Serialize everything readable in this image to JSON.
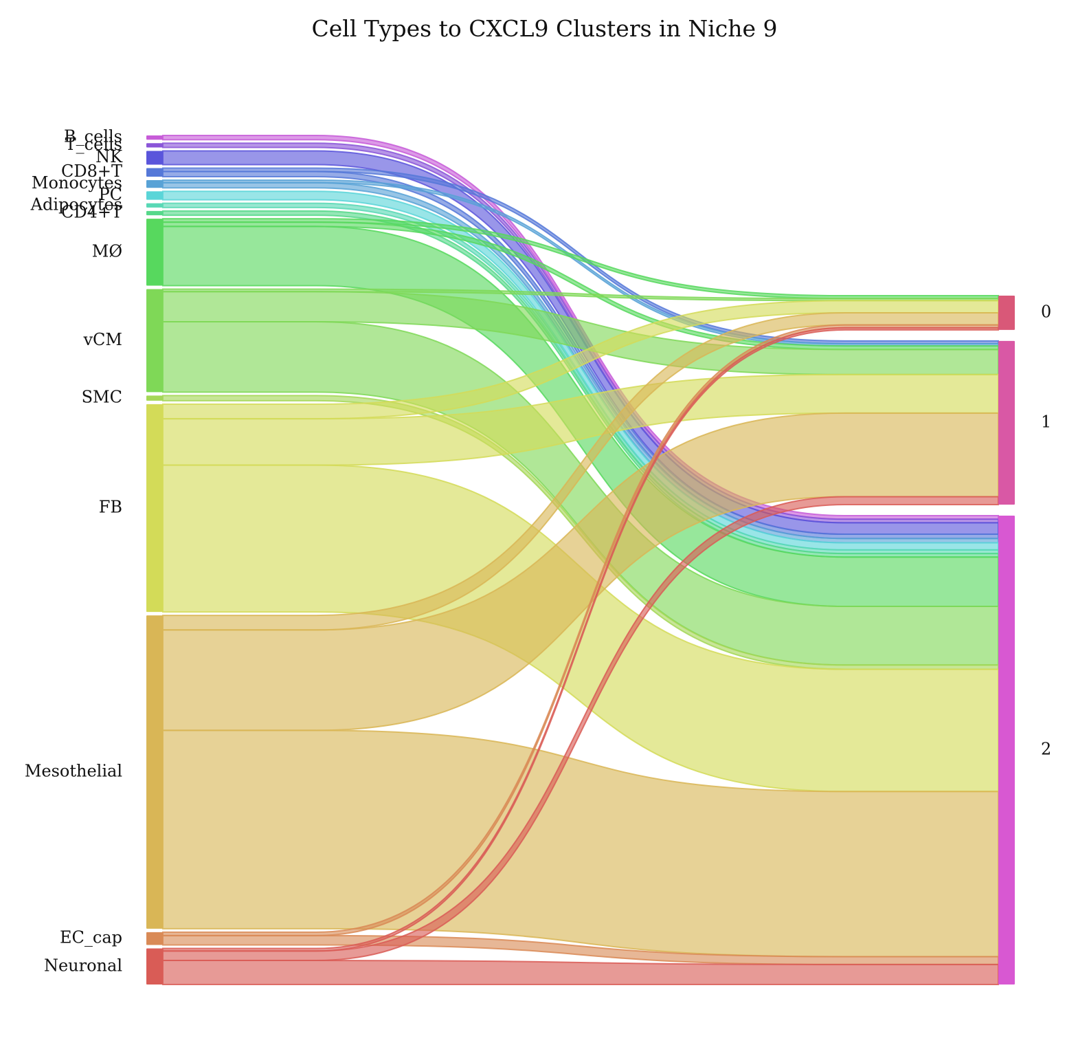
{
  "chart_data": {
    "type": "sankey",
    "title": "Cell Types to CXCL9 Clusters in Niche 9",
    "sources": [
      {
        "name": "B_cells",
        "color": "#c75cd8"
      },
      {
        "name": "T_cells",
        "color": "#8a55d8"
      },
      {
        "name": "NK",
        "color": "#5a55db"
      },
      {
        "name": "CD8+T",
        "color": "#5578d8"
      },
      {
        "name": "Monocytes",
        "color": "#58a2d6"
      },
      {
        "name": "PC",
        "color": "#5ad5d8"
      },
      {
        "name": "Adipocytes",
        "color": "#58d8b5"
      },
      {
        "name": "CD4+T",
        "color": "#56d88a"
      },
      {
        "name": "MØ",
        "color": "#57d85e"
      },
      {
        "name": "vCM",
        "color": "#7fd857"
      },
      {
        "name": "SMC",
        "color": "#a5d757"
      },
      {
        "name": "FB",
        "color": "#d3db58"
      },
      {
        "name": "Mesothelial",
        "color": "#d9b656"
      },
      {
        "name": "EC_cap",
        "color": "#d98a56"
      },
      {
        "name": "Neuronal",
        "color": "#d95c56"
      }
    ],
    "targets": [
      {
        "name": "0",
        "color": "#d95878"
      },
      {
        "name": "1",
        "color": "#d958a5"
      },
      {
        "name": "2",
        "color": "#d858d2"
      }
    ],
    "flows": [
      {
        "source": "B_cells",
        "target": "2",
        "value": 0.5
      },
      {
        "source": "T_cells",
        "target": "2",
        "value": 0.5
      },
      {
        "source": "NK",
        "target": "2",
        "value": 1.6
      },
      {
        "source": "CD8+T",
        "target": "1",
        "value": 0.4
      },
      {
        "source": "CD8+T",
        "target": "2",
        "value": 0.6
      },
      {
        "source": "Monocytes",
        "target": "1",
        "value": 0.3
      },
      {
        "source": "Monocytes",
        "target": "2",
        "value": 0.6
      },
      {
        "source": "PC",
        "target": "2",
        "value": 1.0
      },
      {
        "source": "Adipocytes",
        "target": "2",
        "value": 0.5
      },
      {
        "source": "CD4+T",
        "target": "2",
        "value": 0.5
      },
      {
        "source": "MØ",
        "target": "0",
        "value": 0.4
      },
      {
        "source": "MØ",
        "target": "1",
        "value": 0.5
      },
      {
        "source": "MØ",
        "target": "2",
        "value": 6.9
      },
      {
        "source": "vCM",
        "target": "0",
        "value": 0.3
      },
      {
        "source": "vCM",
        "target": "1",
        "value": 3.5
      },
      {
        "source": "vCM",
        "target": "2",
        "value": 8.2
      },
      {
        "source": "SMC",
        "target": "2",
        "value": 0.6
      },
      {
        "source": "FB",
        "target": "0",
        "value": 1.7
      },
      {
        "source": "FB",
        "target": "1",
        "value": 5.4
      },
      {
        "source": "FB",
        "target": "2",
        "value": 17.1
      },
      {
        "source": "Mesothelial",
        "target": "0",
        "value": 1.7
      },
      {
        "source": "Mesothelial",
        "target": "1",
        "value": 11.7
      },
      {
        "source": "Mesothelial",
        "target": "2",
        "value": 23.1
      },
      {
        "source": "EC_cap",
        "target": "0",
        "value": 0.4
      },
      {
        "source": "EC_cap",
        "target": "2",
        "value": 1.1
      },
      {
        "source": "Neuronal",
        "target": "0",
        "value": 0.3
      },
      {
        "source": "Neuronal",
        "target": "1",
        "value": 1.1
      },
      {
        "source": "Neuronal",
        "target": "2",
        "value": 2.8
      }
    ]
  }
}
